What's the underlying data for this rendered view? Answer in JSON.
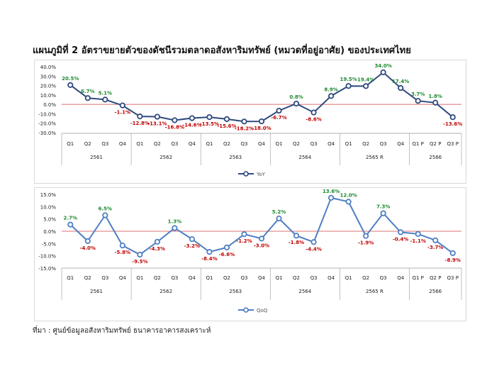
{
  "title": "แผนภูมิที่ 2 อัตราขยายตัวของดัชนีรวมตลาดอสังหาริมทรัพย์ (หมวดที่อยู่อาศัย) ของประเทศไทย",
  "source": "ที่มา : ศูนย์ข้อมูลอสังหาริมทรัพย์ ธนาคารอาคารสงเคราะห์",
  "colors": {
    "positive": "#1a8a2e",
    "negative": "#c00000",
    "yoy_line": "#2e4a7d",
    "qoq_line": "#4f7fc3",
    "zero_line": "#d04040"
  },
  "chart_data": [
    {
      "type": "line",
      "quarters": [
        "Q1",
        "Q2",
        "Q3",
        "Q4",
        "Q1",
        "Q2",
        "Q3",
        "Q4",
        "Q1",
        "Q2",
        "Q3",
        "Q4",
        "Q1",
        "Q2",
        "Q3",
        "Q4",
        "Q1",
        "Q2",
        "Q3",
        "Q4",
        "Q1 P",
        "Q2 P",
        "Q3 P"
      ],
      "years": [
        {
          "label": "2561",
          "quarters": 4
        },
        {
          "label": "2562",
          "quarters": 4
        },
        {
          "label": "2563",
          "quarters": 4
        },
        {
          "label": "2564",
          "quarters": 4
        },
        {
          "label": "2565 R",
          "quarters": 4
        },
        {
          "label": "2566",
          "quarters": 3
        }
      ],
      "series": [
        {
          "name": "YoY",
          "values": [
            20.5,
            6.7,
            5.1,
            -1.1,
            -12.8,
            -13.1,
            -16.8,
            -14.6,
            -13.5,
            -15.6,
            -18.2,
            -18.0,
            -6.7,
            0.8,
            -8.6,
            8.9,
            19.5,
            19.4,
            34.0,
            17.4,
            3.7,
            1.8,
            -13.6
          ]
        }
      ],
      "data_labels": [
        "20.5%",
        "6.7%",
        "5.1%",
        "-1.1%",
        "-12.8%",
        "-13.1%",
        "-16.8%",
        "-14.6%",
        "-13.5%",
        "-15.6%",
        "-18.2%",
        "-18.0%",
        "-6.7%",
        "0.8%",
        "-8.6%",
        "8.9%",
        "19.5%",
        "19.4%",
        "34.0%",
        "17.4%",
        "3.7%",
        "1.8%",
        "-13.6%"
      ],
      "yticks": [
        "40.0%",
        "30.0%",
        "20.0%",
        "10.0%",
        "0.0%",
        "-10.0%",
        "-20.0%",
        "-30.0%"
      ],
      "ylim": [
        -30,
        40
      ],
      "legend": "bottom"
    },
    {
      "type": "line",
      "quarters": [
        "Q1",
        "Q2",
        "Q3",
        "Q4",
        "Q1",
        "Q2",
        "Q3",
        "Q4",
        "Q1",
        "Q2",
        "Q3",
        "Q4",
        "Q1",
        "Q2",
        "Q3",
        "Q4",
        "Q1",
        "Q2",
        "Q3",
        "Q4",
        "Q1 P",
        "Q2 P",
        "Q3 P"
      ],
      "years": [
        {
          "label": "2561",
          "quarters": 4
        },
        {
          "label": "2562",
          "quarters": 4
        },
        {
          "label": "2563",
          "quarters": 4
        },
        {
          "label": "2564",
          "quarters": 4
        },
        {
          "label": "2565 R",
          "quarters": 4
        },
        {
          "label": "2566",
          "quarters": 3
        }
      ],
      "series": [
        {
          "name": "QoQ",
          "values": [
            2.7,
            -4.0,
            6.5,
            -5.8,
            -9.5,
            -4.3,
            1.3,
            -3.2,
            -8.4,
            -6.6,
            -1.2,
            -3.0,
            5.2,
            -1.8,
            -4.4,
            13.6,
            12.0,
            -1.9,
            7.3,
            -0.4,
            -1.1,
            -3.7,
            -8.9
          ]
        }
      ],
      "data_labels": [
        "2.7%",
        "-4.0%",
        "6.5%",
        "-5.8%",
        "-9.5%",
        "-4.3%",
        "1.3%",
        "-3.2%",
        "-8.4%",
        "-6.6%",
        "-1.2%",
        "-3.0%",
        "5.2%",
        "-1.8%",
        "-4.4%",
        "13.6%",
        "12.0%",
        "-1.9%",
        "7.3%",
        "-0.4%",
        "-1.1%",
        "-3.7%",
        "-8.9%"
      ],
      "yticks": [
        "15.0%",
        "10.0%",
        "5.0%",
        "0.0%",
        "-5.0%",
        "-10.0%",
        "-15.0%"
      ],
      "ylim": [
        -15,
        15
      ],
      "legend": "bottom"
    }
  ]
}
